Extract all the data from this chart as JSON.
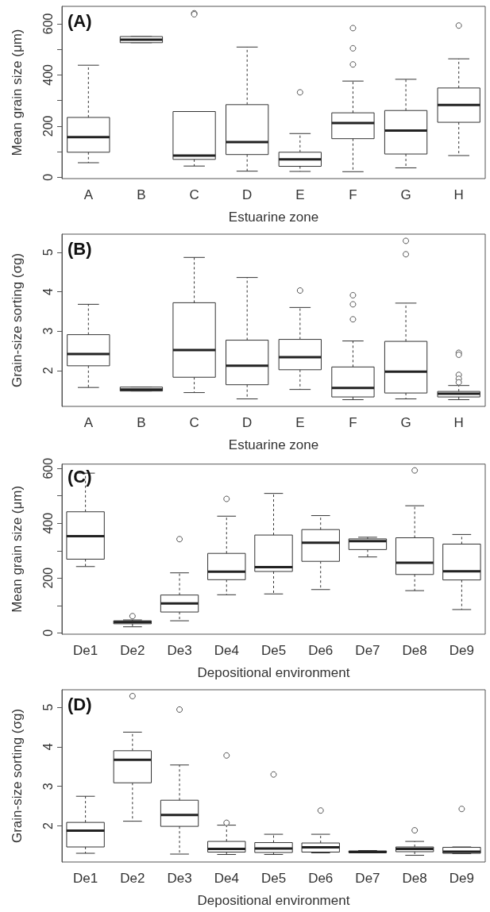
{
  "chart_data": [
    {
      "type": "box",
      "title": "(A)",
      "xlabel": "Estuarine zone",
      "ylabel": "Mean grain size (μm)",
      "categories": [
        "A",
        "B",
        "C",
        "D",
        "E",
        "F",
        "G",
        "H"
      ],
      "ylim": [
        -5,
        668
      ],
      "yticks": [
        0,
        {
          "value": 100,
          "label": null
        },
        200,
        {
          "value": 300,
          "label": null
        },
        400,
        {
          "value": 500,
          "label": null
        },
        600
      ],
      "boxes": [
        {
          "low": 57,
          "q1": 98,
          "median": 157,
          "q3": 234,
          "high": 438
        },
        {
          "low": 526,
          "q1": 526,
          "median": 538,
          "q3": 550,
          "high": 550
        },
        {
          "low": 44,
          "q1": 70,
          "median": 85,
          "q3": 257,
          "high": 257,
          "outliers": [
            641,
            637
          ]
        },
        {
          "low": 24,
          "q1": 89,
          "median": 138,
          "q3": 284,
          "high": 509
        },
        {
          "low": 23,
          "q1": 43,
          "median": 70,
          "q3": 98,
          "high": 171,
          "outliers": [
            332
          ]
        },
        {
          "low": 22,
          "q1": 151,
          "median": 212,
          "q3": 252,
          "high": 376,
          "outliers": [
            583,
            504,
            441
          ]
        },
        {
          "low": 37,
          "q1": 91,
          "median": 183,
          "q3": 261,
          "high": 383
        },
        {
          "low": 85,
          "q1": 215,
          "median": 283,
          "q3": 349,
          "high": 463,
          "outliers": [
            593
          ]
        }
      ]
    },
    {
      "type": "box",
      "title": "(B)",
      "xlabel": "Estuarine zone",
      "ylabel": "Grain-size sorting (σg)",
      "categories": [
        "A",
        "B",
        "C",
        "D",
        "E",
        "F",
        "G",
        "H"
      ],
      "ylim": [
        1.09,
        5.46
      ],
      "yticks": [
        2,
        3,
        4,
        5
      ],
      "boxes": [
        {
          "low": 1.57,
          "q1": 2.12,
          "median": 2.42,
          "q3": 2.91,
          "high": 3.68
        },
        {
          "low": 1.48,
          "q1": 1.48,
          "median": 1.52,
          "q3": 1.58,
          "high": 1.58
        },
        {
          "low": 1.44,
          "q1": 1.83,
          "median": 2.52,
          "q3": 3.72,
          "high": 4.87
        },
        {
          "low": 1.28,
          "q1": 1.64,
          "median": 2.12,
          "q3": 2.77,
          "high": 4.36
        },
        {
          "low": 1.52,
          "q1": 2.02,
          "median": 2.34,
          "q3": 2.79,
          "high": 3.6,
          "outliers": [
            4.03
          ]
        },
        {
          "low": 1.26,
          "q1": 1.33,
          "median": 1.56,
          "q3": 2.09,
          "high": 2.75,
          "outliers": [
            3.91,
            3.68,
            3.3
          ]
        },
        {
          "low": 1.28,
          "q1": 1.43,
          "median": 1.97,
          "q3": 2.74,
          "high": 3.71,
          "outliers": [
            5.29,
            4.95
          ]
        },
        {
          "low": 1.26,
          "q1": 1.33,
          "median": 1.41,
          "q3": 1.47,
          "high": 1.62,
          "outliers": [
            2.45,
            2.4,
            1.89,
            1.79,
            1.7
          ]
        }
      ]
    },
    {
      "type": "box",
      "title": "(C)",
      "xlabel": "Depositional environment",
      "ylabel": "Mean grain size (μm)",
      "categories": [
        "De1",
        "De2",
        "De3",
        "De4",
        "De5",
        "De6",
        "De7",
        "De8",
        "De9"
      ],
      "ylim": [
        -5,
        616
      ],
      "yticks": [
        0,
        {
          "value": 100,
          "label": null
        },
        200,
        {
          "value": 300,
          "label": null
        },
        400,
        {
          "value": 500,
          "label": null
        },
        600
      ],
      "boxes": [
        {
          "low": 242,
          "q1": 269,
          "median": 353,
          "q3": 442,
          "high": 583
        },
        {
          "low": 22,
          "q1": 33,
          "median": 39,
          "q3": 44,
          "high": 47,
          "outliers": [
            61
          ]
        },
        {
          "low": 44,
          "q1": 76,
          "median": 107,
          "q3": 138,
          "high": 219,
          "outliers": [
            342
          ]
        },
        {
          "low": 139,
          "q1": 194,
          "median": 223,
          "q3": 290,
          "high": 426,
          "outliers": [
            489
          ]
        },
        {
          "low": 142,
          "q1": 224,
          "median": 240,
          "q3": 357,
          "high": 509
        },
        {
          "low": 158,
          "q1": 261,
          "median": 329,
          "q3": 377,
          "high": 428
        },
        {
          "low": 277,
          "q1": 304,
          "median": 335,
          "q3": 343,
          "high": 349
        },
        {
          "low": 154,
          "q1": 213,
          "median": 256,
          "q3": 347,
          "high": 464,
          "outliers": [
            593
          ]
        },
        {
          "low": 85,
          "q1": 193,
          "median": 225,
          "q3": 324,
          "high": 359
        }
      ]
    },
    {
      "type": "box",
      "title": "(D)",
      "xlabel": "Depositional environment",
      "ylabel": "Grain-size sorting (σg)",
      "categories": [
        "De1",
        "De2",
        "De3",
        "De4",
        "De5",
        "De6",
        "De7",
        "De8",
        "De9"
      ],
      "ylim": [
        1.09,
        5.44
      ],
      "yticks": [
        2,
        3,
        4,
        5
      ],
      "boxes": [
        {
          "low": 1.31,
          "q1": 1.47,
          "median": 1.88,
          "q3": 2.09,
          "high": 2.75
        },
        {
          "low": 2.12,
          "q1": 3.09,
          "median": 3.67,
          "q3": 3.9,
          "high": 4.37,
          "outliers": [
            5.28
          ]
        },
        {
          "low": 1.29,
          "q1": 1.99,
          "median": 2.28,
          "q3": 2.65,
          "high": 3.54,
          "outliers": [
            4.94
          ]
        },
        {
          "low": 1.28,
          "q1": 1.34,
          "median": 1.42,
          "q3": 1.61,
          "high": 2.02,
          "outliers": [
            3.78,
            2.08
          ]
        },
        {
          "low": 1.28,
          "q1": 1.33,
          "median": 1.43,
          "q3": 1.58,
          "high": 1.79,
          "outliers": [
            3.3
          ]
        },
        {
          "low": 1.32,
          "q1": 1.34,
          "median": 1.46,
          "q3": 1.57,
          "high": 1.79,
          "outliers": [
            2.39
          ]
        },
        {
          "low": 1.32,
          "q1": 1.33,
          "median": 1.34,
          "q3": 1.37,
          "high": 1.38
        },
        {
          "low": 1.26,
          "q1": 1.35,
          "median": 1.42,
          "q3": 1.47,
          "high": 1.61,
          "outliers": [
            1.89
          ]
        },
        {
          "low": 1.3,
          "q1": 1.31,
          "median": 1.35,
          "q3": 1.46,
          "high": 1.47,
          "outliers": [
            2.43
          ]
        }
      ]
    }
  ]
}
